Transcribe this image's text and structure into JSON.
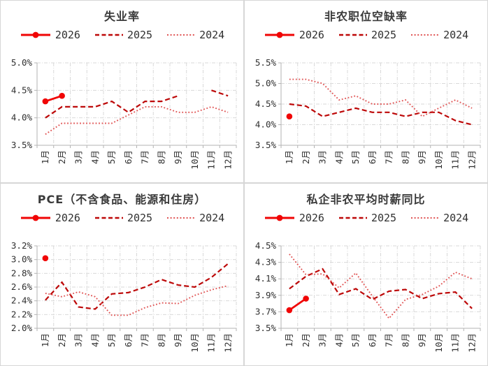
{
  "colors": {
    "2026": "#f00505",
    "2025": "#bd0808",
    "2024": "#e05555",
    "grid": "#d9d9d9",
    "axis": "#b3b3b3",
    "text": "#303030",
    "title": "#3a3a3a",
    "border": "#d6d6d6",
    "background": "#ffffff"
  },
  "categories": [
    "1月",
    "2月",
    "3月",
    "4月",
    "5月",
    "6月",
    "7月",
    "8月",
    "9月",
    "10月",
    "11月",
    "12月"
  ],
  "legend_order": [
    "2026",
    "2025",
    "2024"
  ],
  "chart_data": [
    {
      "type": "line",
      "title": "失业率",
      "ylim": [
        3.5,
        5.0
      ],
      "ytick_labels": [
        "3.5%",
        "4.0%",
        "4.5%",
        "5.0%"
      ],
      "grid": true,
      "legend_position": "top",
      "series": [
        {
          "name": "2026",
          "style": "solid",
          "marker": true,
          "values": [
            4.3,
            4.4,
            null,
            null,
            null,
            null,
            null,
            null,
            null,
            null,
            null,
            null
          ]
        },
        {
          "name": "2025",
          "style": "dashed",
          "marker": false,
          "values": [
            4.0,
            4.2,
            4.2,
            4.2,
            4.3,
            4.1,
            4.3,
            4.3,
            4.4,
            null,
            4.5,
            4.4
          ]
        },
        {
          "name": "2024",
          "style": "dotted",
          "marker": false,
          "values": [
            3.7,
            3.9,
            3.9,
            3.9,
            3.9,
            4.05,
            4.2,
            4.2,
            4.1,
            4.1,
            4.2,
            4.1
          ]
        }
      ]
    },
    {
      "type": "line",
      "title": "非农职位空缺率",
      "ylim": [
        3.5,
        5.5
      ],
      "ytick_labels": [
        "3.5%",
        "4.0%",
        "4.5%",
        "5.0%",
        "5.5%"
      ],
      "grid": true,
      "legend_position": "top",
      "series": [
        {
          "name": "2026",
          "style": "solid",
          "marker": true,
          "values": [
            4.2,
            null,
            null,
            null,
            null,
            null,
            null,
            null,
            null,
            null,
            null,
            null
          ]
        },
        {
          "name": "2025",
          "style": "dashed",
          "marker": false,
          "values": [
            4.5,
            4.45,
            4.2,
            4.3,
            4.4,
            4.3,
            4.3,
            4.2,
            4.3,
            4.3,
            4.1,
            4.0
          ]
        },
        {
          "name": "2024",
          "style": "dotted",
          "marker": false,
          "values": [
            5.1,
            5.1,
            5.0,
            4.6,
            4.7,
            4.5,
            4.5,
            4.6,
            4.2,
            4.4,
            4.6,
            4.4
          ]
        }
      ]
    },
    {
      "type": "line",
      "title": "PCE（不含食品、能源和住房）",
      "ylim": [
        2.0,
        3.2
      ],
      "ytick_labels": [
        "2.0%",
        "2.2%",
        "2.4%",
        "2.6%",
        "2.8%",
        "3.0%",
        "3.2%"
      ],
      "grid": true,
      "legend_position": "top",
      "series": [
        {
          "name": "2026",
          "style": "solid",
          "marker": true,
          "values": [
            3.02,
            null,
            null,
            null,
            null,
            null,
            null,
            null,
            null,
            null,
            null,
            null
          ]
        },
        {
          "name": "2025",
          "style": "dashed",
          "marker": false,
          "values": [
            2.41,
            2.67,
            2.31,
            2.28,
            2.5,
            2.52,
            2.6,
            2.71,
            2.63,
            2.6,
            2.74,
            2.94
          ]
        },
        {
          "name": "2024",
          "style": "dotted",
          "marker": false,
          "values": [
            2.51,
            2.46,
            2.53,
            2.46,
            2.19,
            2.19,
            2.3,
            2.37,
            2.36,
            2.48,
            2.56,
            2.62
          ]
        }
      ]
    },
    {
      "type": "line",
      "title": "私企非农平均时薪同比",
      "ylim": [
        3.5,
        4.5
      ],
      "ytick_labels": [
        "3.5%",
        "3.7%",
        "3.9%",
        "4.1%",
        "4.3%",
        "4.5%"
      ],
      "grid": true,
      "legend_position": "top",
      "series": [
        {
          "name": "2026",
          "style": "solid",
          "marker": true,
          "values": [
            3.72,
            3.86,
            null,
            null,
            null,
            null,
            null,
            null,
            null,
            null,
            null,
            null
          ]
        },
        {
          "name": "2025",
          "style": "dashed",
          "marker": false,
          "values": [
            3.98,
            4.13,
            4.22,
            3.91,
            3.98,
            3.85,
            3.95,
            3.97,
            3.86,
            3.92,
            3.94,
            3.74
          ]
        },
        {
          "name": "2024",
          "style": "dotted",
          "marker": false,
          "values": [
            4.4,
            4.15,
            4.16,
            3.99,
            4.17,
            3.89,
            3.62,
            3.85,
            3.91,
            4.01,
            4.18,
            4.1
          ]
        }
      ]
    }
  ]
}
